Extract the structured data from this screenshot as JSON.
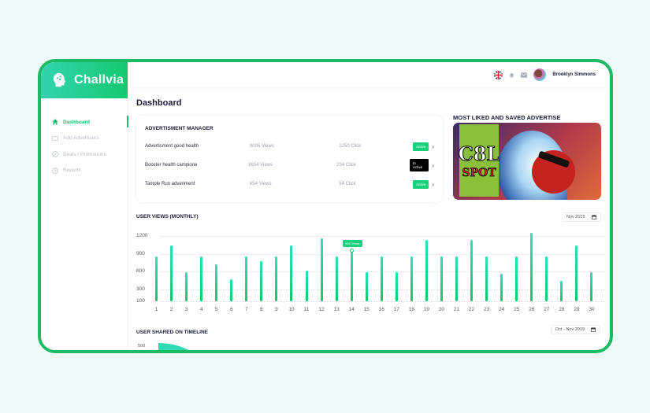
{
  "app": {
    "name": "Challvia"
  },
  "sidebar": {
    "items": [
      {
        "label": "Dashboard",
        "icon": "home-icon",
        "active": true
      },
      {
        "label": "Add Advertisers",
        "icon": "ad-card-icon",
        "active": false
      },
      {
        "label": "Deals / Promotions",
        "icon": "check-circle-icon",
        "active": false
      },
      {
        "label": "Reports",
        "icon": "pie-chart-icon",
        "active": false
      }
    ]
  },
  "topbar": {
    "language_flag": "uk-flag-icon",
    "notification_icon": "bell-icon",
    "mail_icon": "mail-icon",
    "user_name": "Brooklyn Simmons"
  },
  "page": {
    "title": "Dashboard"
  },
  "ad_manager": {
    "title": "ADVERTISMENT MANAGER",
    "rows": [
      {
        "name": "Advertisment good health",
        "views": "9005 Views",
        "clicks": "1250 Click",
        "status": "Active",
        "status_color": "#1ad07a"
      },
      {
        "name": "Booster health campione",
        "views": "8654 Views",
        "clicks": "234 Click",
        "status": "In Active",
        "status_color": "#000000"
      },
      {
        "name": "Tample Run adveriment",
        "views": "654 Views",
        "clicks": "54 Click",
        "status": "Active",
        "status_color": "#1ad07a"
      }
    ]
  },
  "featured": {
    "title": "MOST LIKED AND SAVED ADVERTISE",
    "image_text_top": "C8L",
    "image_text_bottom": "SPOT"
  },
  "user_views": {
    "title": "USER VIEWS (MONTHLY)",
    "date_filter": "Nov 2019",
    "tooltip": "950 Views"
  },
  "user_shared": {
    "title": "USER SHARED ON TIMELINE",
    "date_filter": "Oct - Nov 2019",
    "y_top": "500"
  },
  "colors": {
    "accent": "#16c36e",
    "accent_light": "#34d3b0",
    "frame": "#1db963"
  },
  "chart_data": {
    "type": "bar",
    "title": "USER VIEWS (MONTHLY)",
    "xlabel": "",
    "ylabel": "",
    "yticks": [
      1200,
      900,
      600,
      300,
      100
    ],
    "ylim": [
      100,
      1200
    ],
    "categories": [
      "1",
      "2",
      "3",
      "4",
      "5",
      "6",
      "7",
      "8",
      "9",
      "10",
      "11",
      "12",
      "13",
      "14",
      "15",
      "16",
      "17",
      "18",
      "19",
      "20",
      "21",
      "22",
      "23",
      "24",
      "25",
      "26",
      "27",
      "28",
      "29",
      "30"
    ],
    "values": [
      850,
      1040,
      590,
      850,
      720,
      470,
      850,
      770,
      850,
      1040,
      620,
      1160,
      850,
      950,
      590,
      850,
      590,
      850,
      1140,
      850,
      850,
      1140,
      850,
      560,
      850,
      1250,
      850,
      440,
      1040,
      590
    ],
    "annotations": [
      {
        "x": "14",
        "label": "950 Views"
      }
    ],
    "grid": true
  }
}
